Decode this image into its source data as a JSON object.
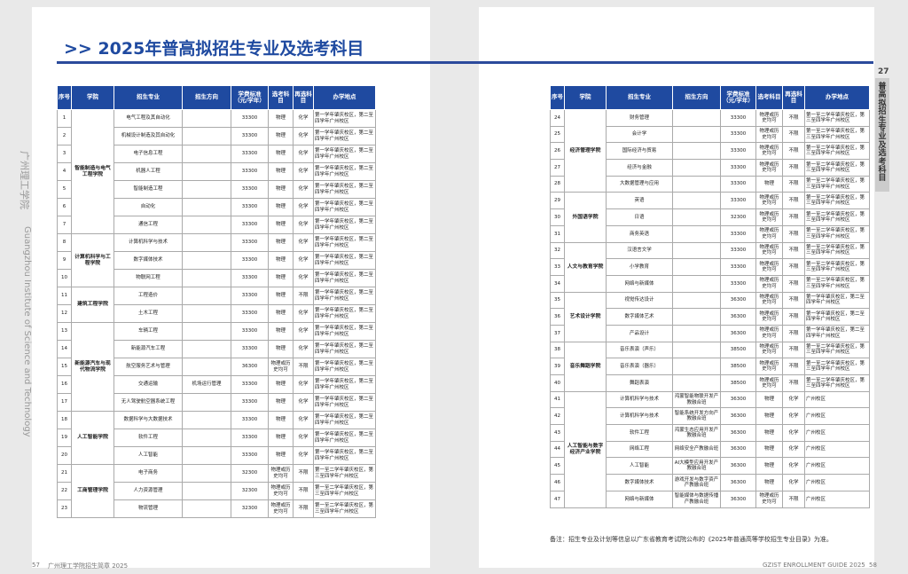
{
  "header": {
    "title": ">> 2025年普高拟招生专业及选考科目",
    "side_cn": "广州理工学院",
    "side_en": "Guangzhou Institute of Science and Technology",
    "tab_number": "27",
    "tab_text": "普高拟招生专业及选考科目"
  },
  "left_table": {
    "headers": [
      "序号",
      "学院",
      "招生专业",
      "招生方向",
      "学费标准（元/学年）",
      "选考科目",
      "再选科目",
      "办学地点"
    ],
    "groups": [
      {
        "college": "智能制造与电气工程学院",
        "rows": [
          [
            1,
            "电气工程及其自动化",
            null,
            33300,
            "物理",
            "化学",
            "第一学年肇庆校区，第二至四学年广州校区"
          ],
          [
            2,
            "机械设计制造及其自动化",
            null,
            33300,
            "物理",
            "化学",
            "第一学年肇庆校区，第二至四学年广州校区"
          ],
          [
            3,
            "电子信息工程",
            null,
            33300,
            "物理",
            "化学",
            "第一学年肇庆校区，第二至四学年广州校区"
          ],
          [
            4,
            "机器人工程",
            null,
            33300,
            "物理",
            "化学",
            "第一学年肇庆校区，第二至四学年广州校区"
          ],
          [
            5,
            "智能制造工程",
            null,
            33300,
            "物理",
            "化学",
            "第一学年肇庆校区，第二至四学年广州校区"
          ],
          [
            6,
            "自动化",
            null,
            33300,
            "物理",
            "化学",
            "第一学年肇庆校区，第二至四学年广州校区"
          ],
          [
            7,
            "通信工程",
            null,
            33300,
            "物理",
            "化学",
            "第一学年肇庆校区，第二至四学年广州校区"
          ]
        ]
      },
      {
        "college": "计算机科学与工程学院",
        "rows": [
          [
            8,
            "计算机科学与技术",
            null,
            33300,
            "物理",
            "化学",
            "第一学年肇庆校区，第二至四学年广州校区"
          ],
          [
            9,
            "数字媒体技术",
            null,
            33300,
            "物理",
            "化学",
            "第一学年肇庆校区，第二至四学年广州校区"
          ],
          [
            10,
            "物联网工程",
            null,
            33300,
            "物理",
            "化学",
            "第一学年肇庆校区，第二至四学年广州校区"
          ]
        ]
      },
      {
        "college": "建筑工程学院",
        "rows": [
          [
            11,
            "工程造价",
            null,
            33300,
            "物理",
            "不限",
            "第一学年肇庆校区，第二至四学年广州校区"
          ],
          [
            12,
            "土木工程",
            null,
            33300,
            "物理",
            "化学",
            "第一学年肇庆校区，第二至四学年广州校区"
          ]
        ]
      },
      {
        "college": "新能源汽车与现代物流学院",
        "rows": [
          [
            13,
            "车辆工程",
            null,
            33300,
            "物理",
            "化学",
            "第一学年肇庆校区，第二至四学年广州校区"
          ],
          [
            14,
            "新能源汽车工程",
            null,
            33300,
            "物理",
            "化学",
            "第一学年肇庆校区，第二至四学年广州校区"
          ],
          [
            15,
            "航空服务艺术与管理",
            null,
            36300,
            "物理或历史均可",
            "不限",
            "第一学年肇庆校区，第二至四学年广州校区"
          ],
          [
            16,
            "交通运输",
            "机场运行管理",
            33300,
            "物理",
            "化学",
            "第一学年肇庆校区，第二至四学年广州校区"
          ],
          [
            17,
            "无人驾驶航空器系统工程",
            null,
            33300,
            "物理",
            "化学",
            "第一学年肇庆校区，第二至四学年广州校区"
          ]
        ]
      },
      {
        "college": "人工智能学院",
        "rows": [
          [
            18,
            "数据科学与大数据技术",
            null,
            33300,
            "物理",
            "化学",
            "第一学年肇庆校区，第二至四学年广州校区"
          ],
          [
            19,
            "软件工程",
            null,
            33300,
            "物理",
            "化学",
            "第一学年肇庆校区，第二至四学年广州校区"
          ],
          [
            20,
            "人工智能",
            null,
            33300,
            "物理",
            "化学",
            "第一学年肇庆校区，第二至四学年广州校区"
          ]
        ]
      },
      {
        "college": "工商管理学院",
        "rows": [
          [
            21,
            "电子商务",
            null,
            32300,
            "物理或历史均可",
            "不限",
            "第一至二学年肇庆校区，第三至四学年广州校区"
          ],
          [
            22,
            "人力资源管理",
            null,
            32300,
            "物理或历史均可",
            "不限",
            "第一至二学年肇庆校区，第三至四学年广州校区"
          ],
          [
            23,
            "物流管理",
            null,
            32300,
            "物理或历史均可",
            "不限",
            "第一至二学年肇庆校区，第三至四学年广州校区"
          ]
        ]
      }
    ]
  },
  "right_table": {
    "headers": [
      "序号",
      "学院",
      "招生专业",
      "招生方向",
      "学费标准（元/学年）",
      "选考科目",
      "再选科目",
      "办学地点"
    ],
    "groups": [
      {
        "college": "经济管理学院",
        "rows": [
          [
            24,
            "财务管理",
            null,
            33300,
            "物理或历史均可",
            "不限",
            "第一至二学年肇庆校区，第三至四学年广州校区"
          ],
          [
            25,
            "会计学",
            null,
            33300,
            "物理或历史均可",
            "不限",
            "第一至二学年肇庆校区，第三至四学年广州校区"
          ],
          [
            26,
            "国际经济与贸易",
            null,
            33300,
            "物理或历史均可",
            "不限",
            "第一至二学年肇庆校区，第三至四学年广州校区"
          ],
          [
            27,
            "经济与金融",
            null,
            33300,
            "物理或历史均可",
            "不限",
            "第一至二学年肇庆校区，第三至四学年广州校区"
          ],
          [
            28,
            "大数据管理与应用",
            null,
            33300,
            "物理",
            "不限",
            "第一至二学年肇庆校区，第三至四学年广州校区"
          ]
        ]
      },
      {
        "college": "外国语学院",
        "rows": [
          [
            29,
            "英语",
            null,
            33300,
            "物理或历史均可",
            "不限",
            "第一至二学年肇庆校区，第三至四学年广州校区"
          ],
          [
            30,
            "日语",
            null,
            32300,
            "物理或历史均可",
            "不限",
            "第一至二学年肇庆校区，第三至四学年广州校区"
          ],
          [
            31,
            "商务英语",
            null,
            33300,
            "物理或历史均可",
            "不限",
            "第一至二学年肇庆校区，第三至四学年广州校区"
          ]
        ]
      },
      {
        "college": "人文与教育学院",
        "rows": [
          [
            32,
            "汉语言文学",
            null,
            33300,
            "物理或历史均可",
            "不限",
            "第一至二学年肇庆校区，第三至四学年广州校区"
          ],
          [
            33,
            "小学教育",
            null,
            33300,
            "物理或历史均可",
            "不限",
            "第一至二学年肇庆校区，第三至四学年广州校区"
          ],
          [
            34,
            "网络与新媒体",
            null,
            33300,
            "物理或历史均可",
            "不限",
            "第一至二学年肇庆校区，第三至四学年广州校区"
          ]
        ]
      },
      {
        "college": "艺术设计学院",
        "rows": [
          [
            35,
            "视觉传达设计",
            null,
            36300,
            "物理或历史均可",
            "不限",
            "第一学年肇庆校区，第二至四学年广州校区"
          ],
          [
            36,
            "数字媒体艺术",
            null,
            36300,
            "物理或历史均可",
            "不限",
            "第一学年肇庆校区，第二至四学年广州校区"
          ],
          [
            37,
            "产品设计",
            null,
            36300,
            "物理或历史均可",
            "不限",
            "第一学年肇庆校区，第二至四学年广州校区"
          ]
        ]
      },
      {
        "college": "音乐舞蹈学院",
        "rows": [
          [
            38,
            "音乐表演（声乐）",
            null,
            38500,
            "物理或历史均可",
            "不限",
            "第一至二学年肇庆校区，第三至四学年广州校区"
          ],
          [
            39,
            "音乐表演（器乐）",
            null,
            38500,
            "物理或历史均可",
            "不限",
            "第一至二学年肇庆校区，第三至四学年广州校区"
          ],
          [
            40,
            "舞蹈表演",
            null,
            38500,
            "物理或历史均可",
            "不限",
            "第一至二学年肇庆校区，第三至四学年广州校区"
          ]
        ]
      },
      {
        "college": "人工智能与数字经济产业学院",
        "rows": [
          [
            41,
            "计算机科学与技术",
            "鸿蒙智能物联开发产教融合班",
            36300,
            "物理",
            "化学",
            "广州校区"
          ],
          [
            42,
            "计算机科学与技术",
            "智能系统开发方向产教融合班",
            36300,
            "物理",
            "化学",
            "广州校区"
          ],
          [
            43,
            "软件工程",
            "鸿蒙生态应用开发产教融合班",
            36300,
            "物理",
            "化学",
            "广州校区"
          ],
          [
            44,
            "网络工程",
            "网络安全产教融合班",
            36300,
            "物理",
            "化学",
            "广州校区"
          ],
          [
            45,
            "人工智能",
            "AI大模型应用开发产教融合班",
            36300,
            "物理",
            "化学",
            "广州校区"
          ],
          [
            46,
            "数字媒体技术",
            "游戏开发与数字资产产教融合班",
            36300,
            "物理",
            "化学",
            "广州校区"
          ],
          [
            47,
            "网络与新媒体",
            "智能媒体与数据传播产教融合班",
            36300,
            "物理或历史均可",
            "不限",
            "广州校区"
          ]
        ]
      }
    ]
  },
  "note": "备注：招生专业及计划等信息以广东省教育考试院公布的《2025年普通高等学校招生专业目录》为准。",
  "footer": {
    "left_page": "57",
    "left_text": "广州理工学院招生简章 2025",
    "right_text": "GZIST ENROLLMENT GUIDE 2025",
    "right_page": "58"
  }
}
